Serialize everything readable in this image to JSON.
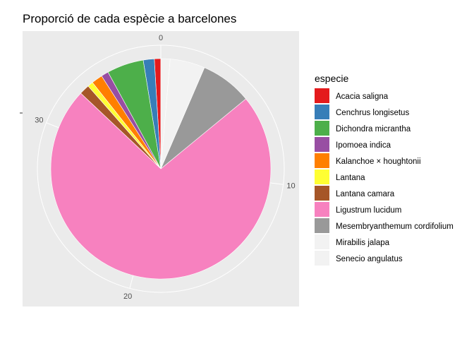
{
  "chart_data": {
    "type": "pie",
    "coord": "polar",
    "title": "Proporció de cada espècie a barcelones",
    "total": 37,
    "theta_ticks": [
      {
        "value": 0,
        "label": "0"
      },
      {
        "value": 10,
        "label": "10"
      },
      {
        "value": 20,
        "label": "20"
      },
      {
        "value": 30,
        "label": "30"
      }
    ],
    "legend": {
      "title": "especie",
      "position": "right"
    },
    "grid": true,
    "background": "#ebebeb",
    "series": [
      {
        "name": "Acacia saligna",
        "value": 0.35,
        "color": "#e41a1c"
      },
      {
        "name": "Cenchrus longisetus",
        "value": 0.6,
        "color": "#377eb8"
      },
      {
        "name": "Dichondra micrantha",
        "value": 2.0,
        "color": "#4daf4a"
      },
      {
        "name": "Ipomoea indica",
        "value": 0.4,
        "color": "#984ea3"
      },
      {
        "name": "Kalanchoe × houghtonii",
        "value": 0.6,
        "color": "#ff7f00"
      },
      {
        "name": "Lantana",
        "value": 0.3,
        "color": "#ffff33"
      },
      {
        "name": "Lantana camara",
        "value": 0.55,
        "color": "#a65628"
      },
      {
        "name": "Ligustrum lucidum",
        "value": 27.0,
        "color": "#f781bf"
      },
      {
        "name": "Mesembryanthemum cordifolium",
        "value": 2.8,
        "color": "#999999"
      },
      {
        "name": "Mirabilis jalapa",
        "value": 1.9,
        "color": "#f2f2f2"
      },
      {
        "name": "Senecio angulatus",
        "value": 0.5,
        "color": "#f2f2f2"
      }
    ]
  }
}
